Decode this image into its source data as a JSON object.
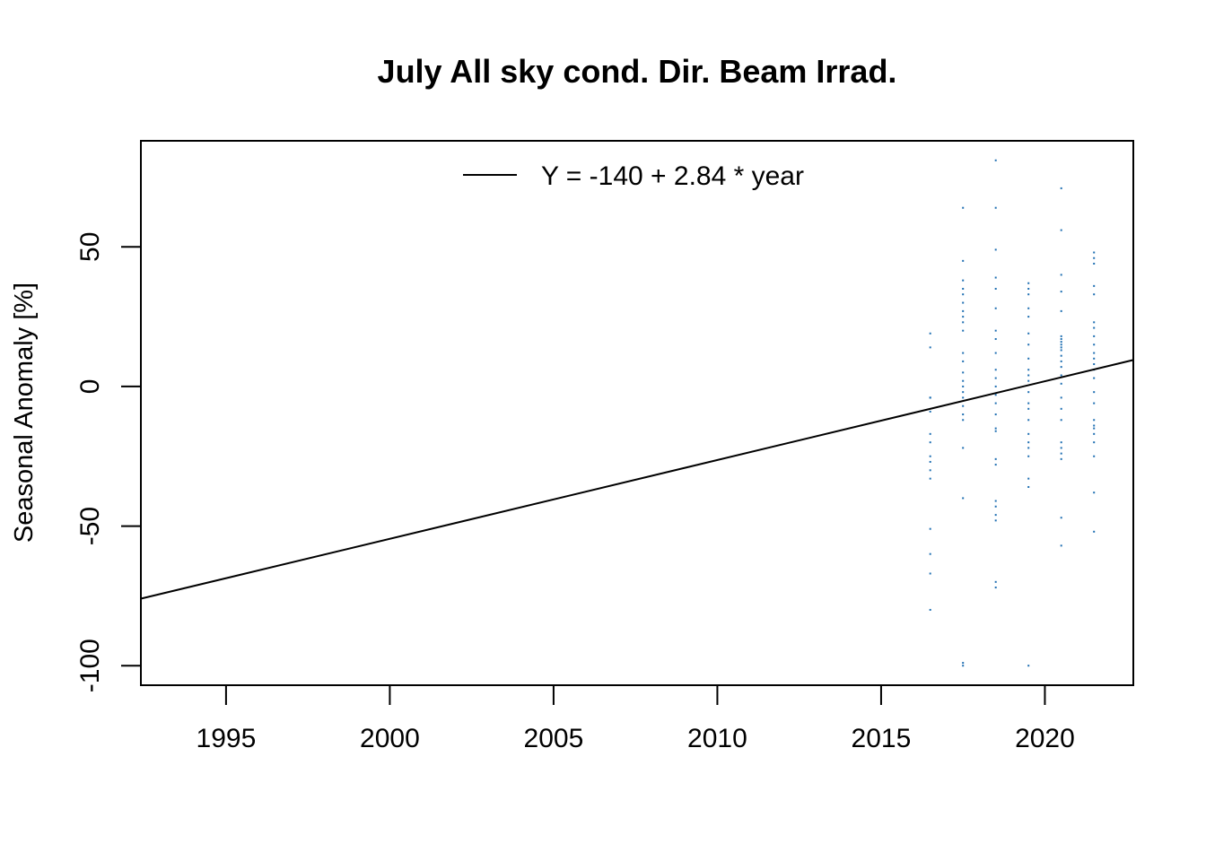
{
  "chart_data": {
    "type": "scatter",
    "title": "July All sky cond. Dir. Beam Irrad.",
    "xlabel": "",
    "ylabel": "Seasonal Anomaly [%]",
    "xlim": [
      1992.4,
      2022.7
    ],
    "ylim": [
      -107,
      88
    ],
    "x_ticks": [
      1995,
      2000,
      2005,
      2010,
      2015,
      2020
    ],
    "y_ticks": [
      -100,
      -50,
      0,
      50
    ],
    "legend": {
      "position": "top",
      "entries": [
        "Y = -140 + 2.84 * year"
      ]
    },
    "trend_line": {
      "intercept_at_xlim_start": -76,
      "intercept_at_xlim_end": 9.5
    },
    "point_color": "#1f6fb2",
    "series": [
      {
        "x": [
          2016.5,
          2016.5,
          2016.5,
          2016.5,
          2016.5,
          2016.5,
          2016.5,
          2016.5,
          2016.5,
          2016.5,
          2016.5,
          2016.5,
          2016.5,
          2016.5,
          2016.5
        ],
        "values": [
          19,
          14,
          -4,
          -9,
          -17,
          -20,
          -25,
          -27,
          -30,
          -33,
          -51,
          -60,
          -67,
          -80,
          -4
        ]
      },
      {
        "x": [
          2017.5,
          2017.5,
          2017.5,
          2017.5,
          2017.5,
          2017.5,
          2017.5,
          2017.5,
          2017.5,
          2017.5,
          2017.5,
          2017.5,
          2017.5,
          2017.5,
          2017.5,
          2017.5,
          2017.5,
          2017.5,
          2017.5,
          2017.5,
          2017.5,
          2017.5,
          2017.5,
          2017.5
        ],
        "values": [
          64,
          45,
          38,
          35,
          33,
          27,
          25,
          23,
          20,
          12,
          9,
          5,
          2,
          0,
          -2,
          -4,
          -7,
          -10,
          -12,
          -22,
          -40,
          -99,
          -100,
          30
        ]
      },
      {
        "x": [
          2018.5,
          2018.5,
          2018.5,
          2018.5,
          2018.5,
          2018.5,
          2018.5,
          2018.5,
          2018.5,
          2018.5,
          2018.5,
          2018.5,
          2018.5,
          2018.5,
          2018.5,
          2018.5,
          2018.5,
          2018.5,
          2018.5,
          2018.5,
          2018.5,
          2018.5,
          2018.5,
          2018.5,
          2018.5
        ],
        "values": [
          81,
          64,
          49,
          39,
          35,
          28,
          20,
          17,
          12,
          6,
          3,
          0,
          -3,
          -6,
          -10,
          -15,
          -16,
          -26,
          -28,
          -41,
          -43,
          -46,
          -48,
          -70,
          -72
        ]
      },
      {
        "x": [
          2019.5,
          2019.5,
          2019.5,
          2019.5,
          2019.5,
          2019.5,
          2019.5,
          2019.5,
          2019.5,
          2019.5,
          2019.5,
          2019.5,
          2019.5,
          2019.5,
          2019.5,
          2019.5,
          2019.5,
          2019.5,
          2019.5,
          2019.5,
          2019.5,
          2019.5
        ],
        "values": [
          37,
          35,
          33,
          25,
          19,
          15,
          10,
          6,
          4,
          2,
          -2,
          -6,
          -8,
          -12,
          -17,
          -20,
          -22,
          -25,
          -33,
          -36,
          -100,
          28
        ]
      },
      {
        "x": [
          2020.5,
          2020.5,
          2020.5,
          2020.5,
          2020.5,
          2020.5,
          2020.5,
          2020.5,
          2020.5,
          2020.5,
          2020.5,
          2020.5,
          2020.5,
          2020.5,
          2020.5,
          2020.5,
          2020.5,
          2020.5,
          2020.5,
          2020.5,
          2020.5,
          2020.5,
          2020.5,
          2020.5,
          2020.5
        ],
        "values": [
          71,
          56,
          40,
          34,
          27,
          18,
          17,
          16,
          15,
          14,
          13,
          11,
          9,
          7,
          4,
          1,
          -4,
          -8,
          -12,
          -20,
          -22,
          -24,
          -26,
          -47,
          -57
        ]
      },
      {
        "x": [
          2021.5,
          2021.5,
          2021.5,
          2021.5,
          2021.5,
          2021.5,
          2021.5,
          2021.5,
          2021.5,
          2021.5,
          2021.5,
          2021.5,
          2021.5,
          2021.5,
          2021.5,
          2021.5,
          2021.5,
          2021.5,
          2021.5,
          2021.5,
          2021.5,
          2021.5,
          2021.5,
          2021.5
        ],
        "values": [
          48,
          46,
          44,
          36,
          33,
          23,
          21,
          18,
          15,
          12,
          10,
          8,
          6,
          3,
          -2,
          -6,
          -12,
          -14,
          -15,
          -17,
          -20,
          -25,
          -38,
          -52
        ]
      }
    ]
  }
}
